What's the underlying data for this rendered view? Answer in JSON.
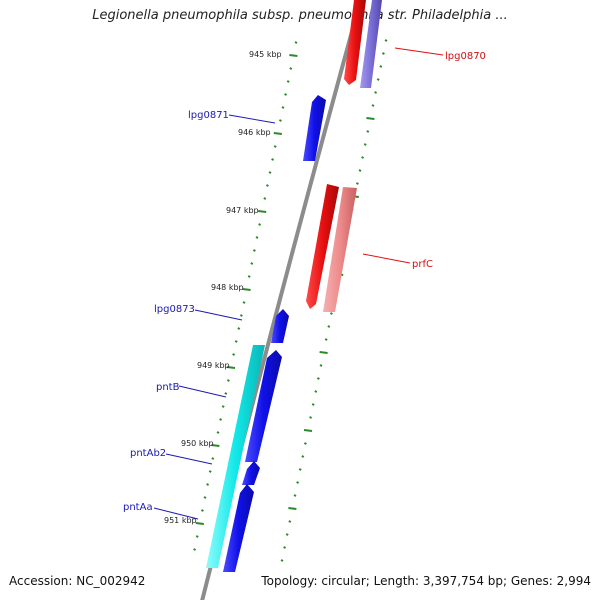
{
  "title": "Legionella pneumophila subsp. pneumophila str. Philadelphia ...",
  "footer": {
    "accession": "Accession: NC_002942",
    "stats": "Topology: circular; Length: 3,397,754 bp; Genes: 2,994"
  },
  "colors": {
    "backbone": "#8c8c8c",
    "tick": "#2b8a2b",
    "forward_gene": "#1010e8",
    "forward_label": "#1a1ab4",
    "reverse_label": "#d01010"
  },
  "kbp_labels": [
    "945 kbp",
    "946 kbp",
    "947 kbp",
    "948 kbp",
    "949 kbp",
    "950 kbp",
    "951 kbp"
  ],
  "genes": [
    {
      "name": "lpg0870",
      "label": "lpg0870",
      "strand": "reverse",
      "color": "#e81010"
    },
    {
      "name": "lpg0870-rna",
      "label": "",
      "strand": "reverse",
      "color": "#7b6fd6"
    },
    {
      "name": "lpg0871",
      "label": "lpg0871",
      "strand": "forward",
      "color": "#1010e8"
    },
    {
      "name": "prfC",
      "label": "prfC",
      "strand": "reverse",
      "color": "#e81010"
    },
    {
      "name": "prfC-product",
      "label": "",
      "strand": "reverse",
      "color": "#ee8b8b"
    },
    {
      "name": "lpg0873",
      "label": "lpg0873",
      "strand": "forward",
      "color": "#1010e8"
    },
    {
      "name": "pntB",
      "label": "pntB",
      "strand": "forward",
      "color": "#1010e8"
    },
    {
      "name": "pntAb2",
      "label": "pntAb2",
      "strand": "forward",
      "color": "#1010e8"
    },
    {
      "name": "pntAa",
      "label": "pntAa",
      "strand": "forward",
      "color": "#1010e8"
    },
    {
      "name": "operon-band",
      "label": "",
      "strand": "forward",
      "color": "#12e8e8"
    }
  ]
}
